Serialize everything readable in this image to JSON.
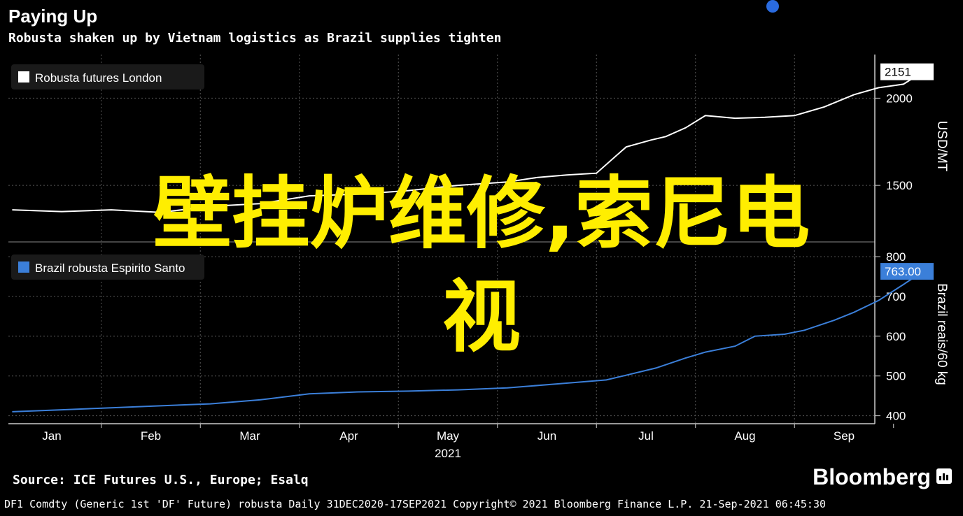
{
  "header": {
    "title": "Paying Up",
    "subtitle": "Robusta shaken up by Vietnam logistics as Brazil supplies tighten"
  },
  "overlay": {
    "line1": "壁挂炉维修,索尼电",
    "line2": "视"
  },
  "footer": {
    "source": "Source: ICE Futures U.S., Europe; Esalq",
    "brand": "Bloomberg",
    "info": "DF1 Comdty (Generic 1st 'DF' Future) robusta  Daily 31DEC2020-17SEP2021  Copyright© 2021 Bloomberg Finance L.P.  21-Sep-2021 06:45:30"
  },
  "colors": {
    "background": "#000000",
    "line_top": "#ffffff",
    "line_bottom": "#3b7fd9",
    "overlay": "#ffee00"
  },
  "chart_data": [
    {
      "type": "line",
      "legend": "Robusta futures London",
      "ylabel": "USD/MT",
      "ylim": [
        1200,
        2250
      ],
      "yticks": [
        1500,
        2000
      ],
      "last_value_label": "2151",
      "x_axis": {
        "months": [
          "Jan",
          "Feb",
          "Mar",
          "Apr",
          "May",
          "Jun",
          "Jul",
          "Aug",
          "Sep"
        ],
        "year": "2021"
      },
      "series": [
        {
          "name": "Robusta futures London",
          "x": [
            0,
            0.5,
            1,
            1.5,
            2,
            2.5,
            3,
            3.5,
            4,
            4.5,
            5,
            5.3,
            5.6,
            5.9,
            6.2,
            6.45,
            6.6,
            6.8,
            7,
            7.3,
            7.6,
            7.9,
            8.2,
            8.5,
            8.75,
            9,
            9.2
          ],
          "y": [
            1360,
            1350,
            1360,
            1345,
            1380,
            1395,
            1440,
            1450,
            1470,
            1500,
            1520,
            1545,
            1560,
            1570,
            1720,
            1760,
            1780,
            1830,
            1900,
            1885,
            1890,
            1900,
            1950,
            2020,
            2060,
            2080,
            2151
          ]
        }
      ]
    },
    {
      "type": "line",
      "legend": "Brazil robusta Espirito Santo",
      "ylabel": "Brazil reais/60 kg",
      "ylim": [
        380,
        830
      ],
      "yticks": [
        400,
        500,
        600,
        700,
        800
      ],
      "last_value_label": "763.00",
      "series": [
        {
          "name": "Brazil robusta Espirito Santo",
          "x": [
            0,
            0.5,
            1,
            1.5,
            2,
            2.5,
            3,
            3.5,
            4,
            4.5,
            5,
            5.5,
            6,
            6.5,
            6.8,
            7,
            7.3,
            7.5,
            7.8,
            8,
            8.3,
            8.5,
            8.75,
            9,
            9.2
          ],
          "y": [
            410,
            415,
            420,
            425,
            430,
            440,
            455,
            460,
            462,
            465,
            470,
            480,
            490,
            520,
            545,
            560,
            575,
            600,
            605,
            615,
            640,
            660,
            690,
            730,
            763
          ]
        }
      ]
    }
  ]
}
